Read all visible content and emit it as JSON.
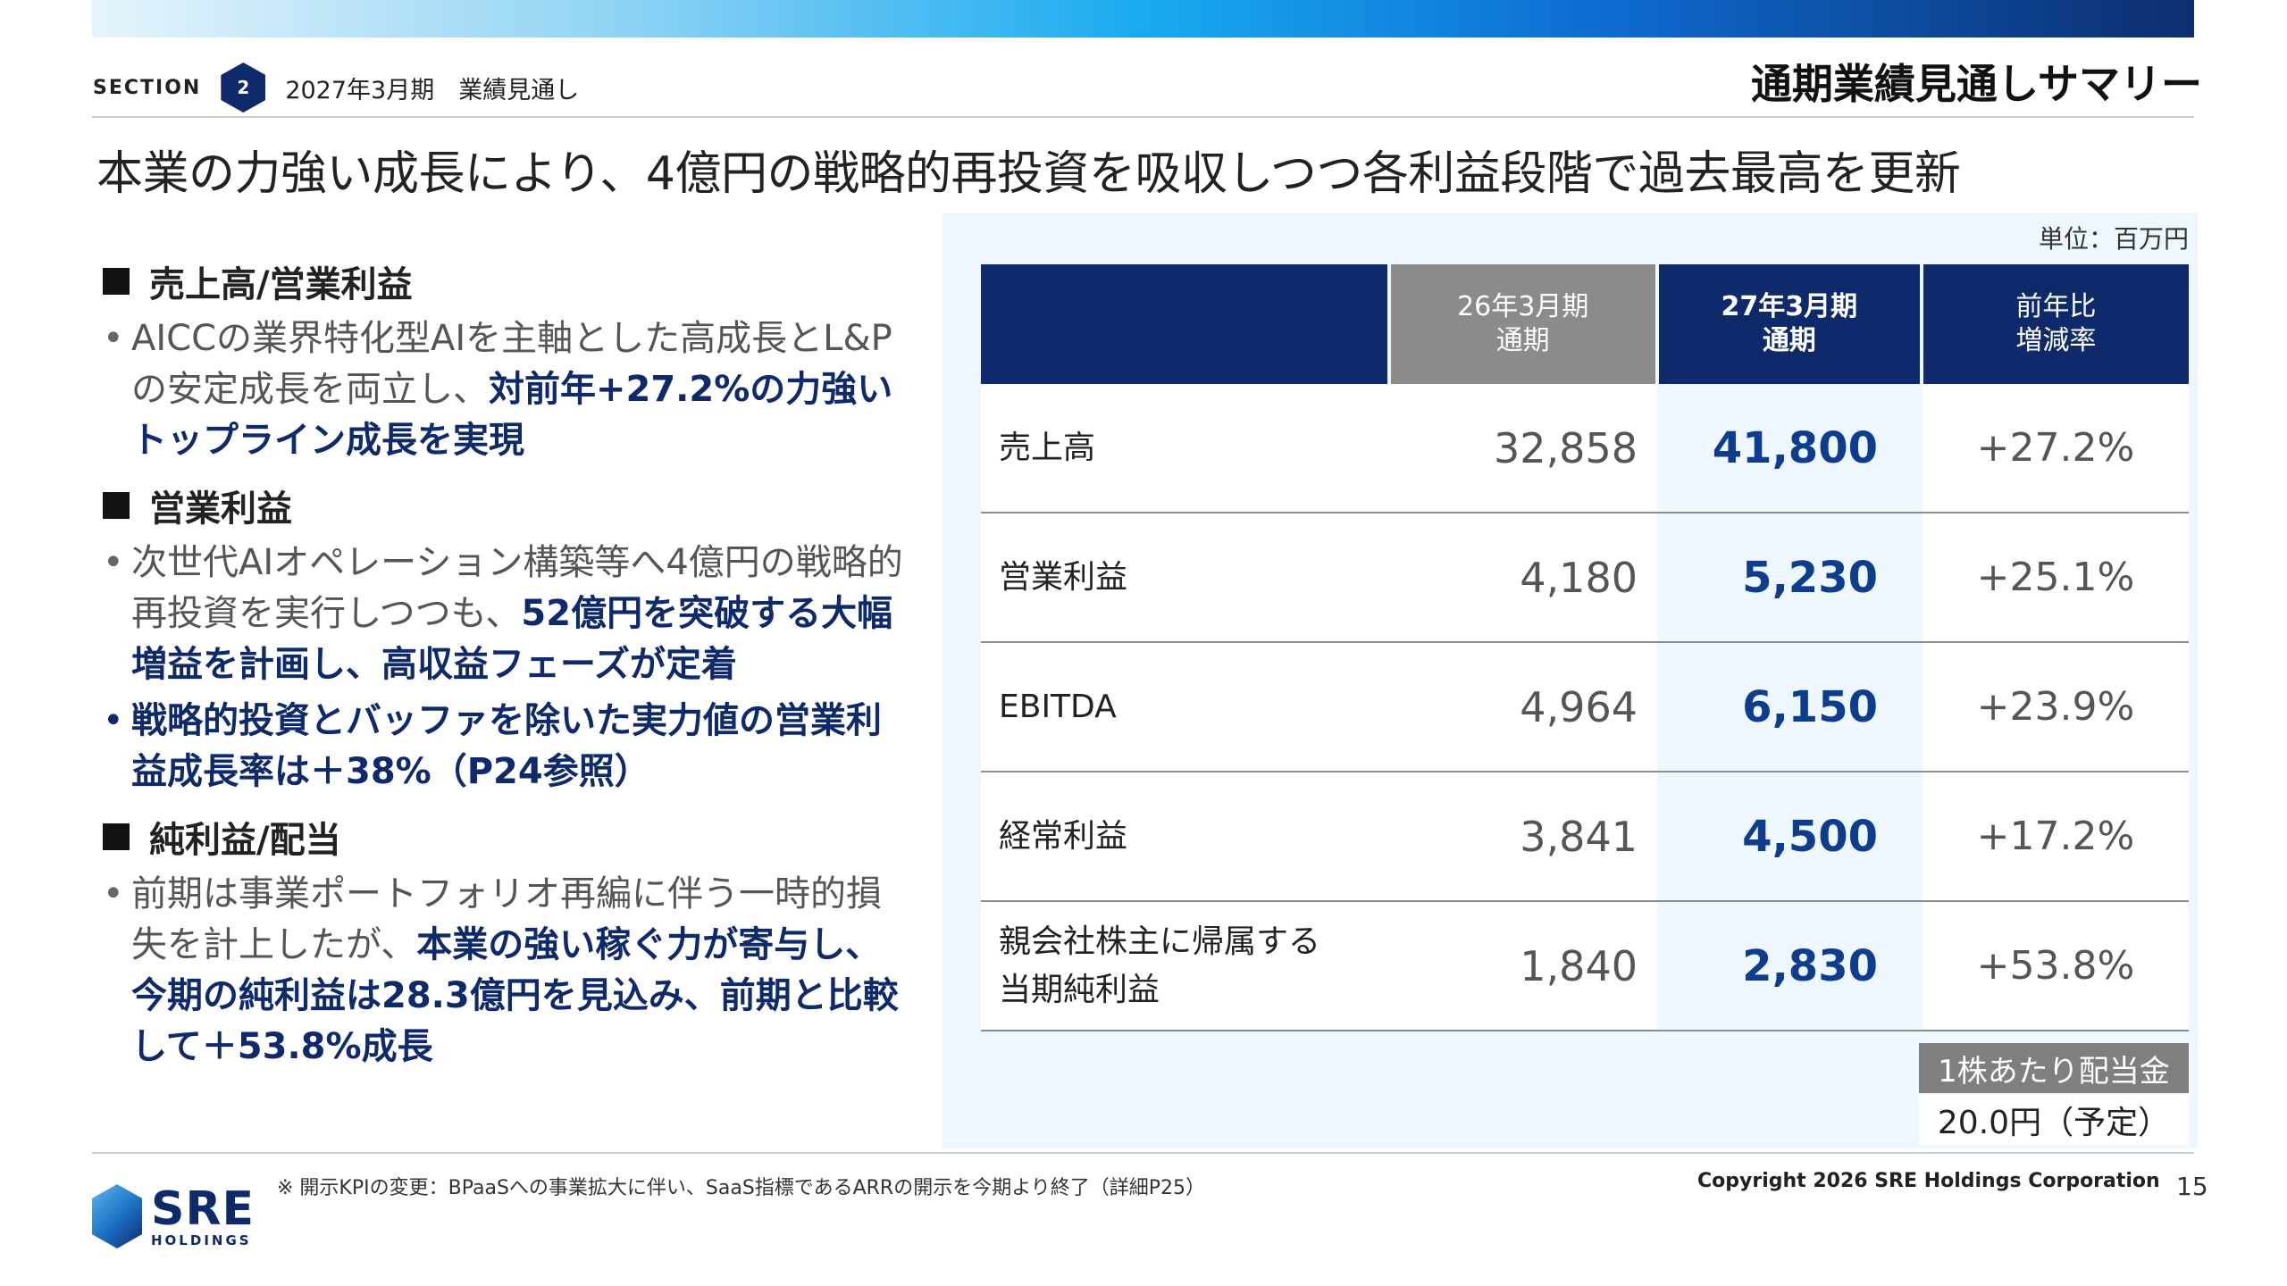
{
  "header": {
    "section_word": "SECTION",
    "section_number": "2",
    "section_title": "2027年3月期　業績見通し",
    "page_heading": "通期業績見通しサマリー"
  },
  "headline": "本業の力強い成長により、4億円の戦略的再投資を吸収しつつ各利益段階で過去最高を更新",
  "left": {
    "sections": [
      {
        "title": "売上高/営業利益",
        "bullets": [
          {
            "parts": [
              "AICCの業界特化型AIを主軸とした高成長とL&Pの安定成長を両立し、",
              "対前年+27.2%の力強いトップライン成長を実現"
            ]
          }
        ]
      },
      {
        "title": "営業利益",
        "bullets": [
          {
            "parts": [
              "次世代AIオペレーション構築等へ4億円の戦略的再投資を実行しつつも、",
              "52億円を突破する大幅増益を計画し、高収益フェーズが定着"
            ]
          },
          {
            "parts": [
              "戦略的投資とバッファを除いた実力値の営業利益成長率は＋38%（P24参照）"
            ]
          }
        ]
      },
      {
        "title": "純利益/配当",
        "bullets": [
          {
            "parts": [
              "前期は事業ポートフォリオ再編に伴う一時的損失を計上したが、",
              "本業の強い稼ぐ力が寄与し、今期の純利益は28.3億円を見込み、前期と比較して＋53.8%成長"
            ]
          }
        ]
      }
    ]
  },
  "table": {
    "unit": "単位：百万円",
    "headers": {
      "prev_line1": "26年3月期",
      "prev_line2": "通期",
      "curr_line1": "27年3月期",
      "curr_line2": "通期",
      "yoy_line1": "前年比",
      "yoy_line2": "増減率"
    },
    "rows": [
      {
        "label_line1": "売上高",
        "label_line2": "",
        "prev": "32,858",
        "curr": "41,800",
        "yoy": "+27.2%"
      },
      {
        "label_line1": "営業利益",
        "label_line2": "",
        "prev": "4,180",
        "curr": "5,230",
        "yoy": "+25.1%"
      },
      {
        "label_line1": "EBITDA",
        "label_line2": "",
        "prev": "4,964",
        "curr": "6,150",
        "yoy": "+23.9%"
      },
      {
        "label_line1": "経常利益",
        "label_line2": "",
        "prev": "3,841",
        "curr": "4,500",
        "yoy": "+17.2%"
      },
      {
        "label_line1": "親会社株主に帰属する",
        "label_line2": "当期純利益",
        "prev": "1,840",
        "curr": "2,830",
        "yoy": "+53.8%"
      }
    ],
    "dividend_label": "1株あたり配当金",
    "dividend_value": "20.0円（予定）"
  },
  "footer": {
    "footnote": "※ 開示KPIの変更：BPaaSへの事業拡大に伴い、SaaS指標であるARRの開示を今期より終了（詳細P25）",
    "copyright": "Copyright 2026 SRE Holdings Corporation",
    "page_number": "15",
    "logo_main": "SRE",
    "logo_sub": "HOLDINGS"
  },
  "colors": {
    "navy": "#0e2a6b",
    "accent_blue": "#0e3d8e",
    "panel_bg": "#eef7fd",
    "gray_header": "#8b8b8b"
  }
}
